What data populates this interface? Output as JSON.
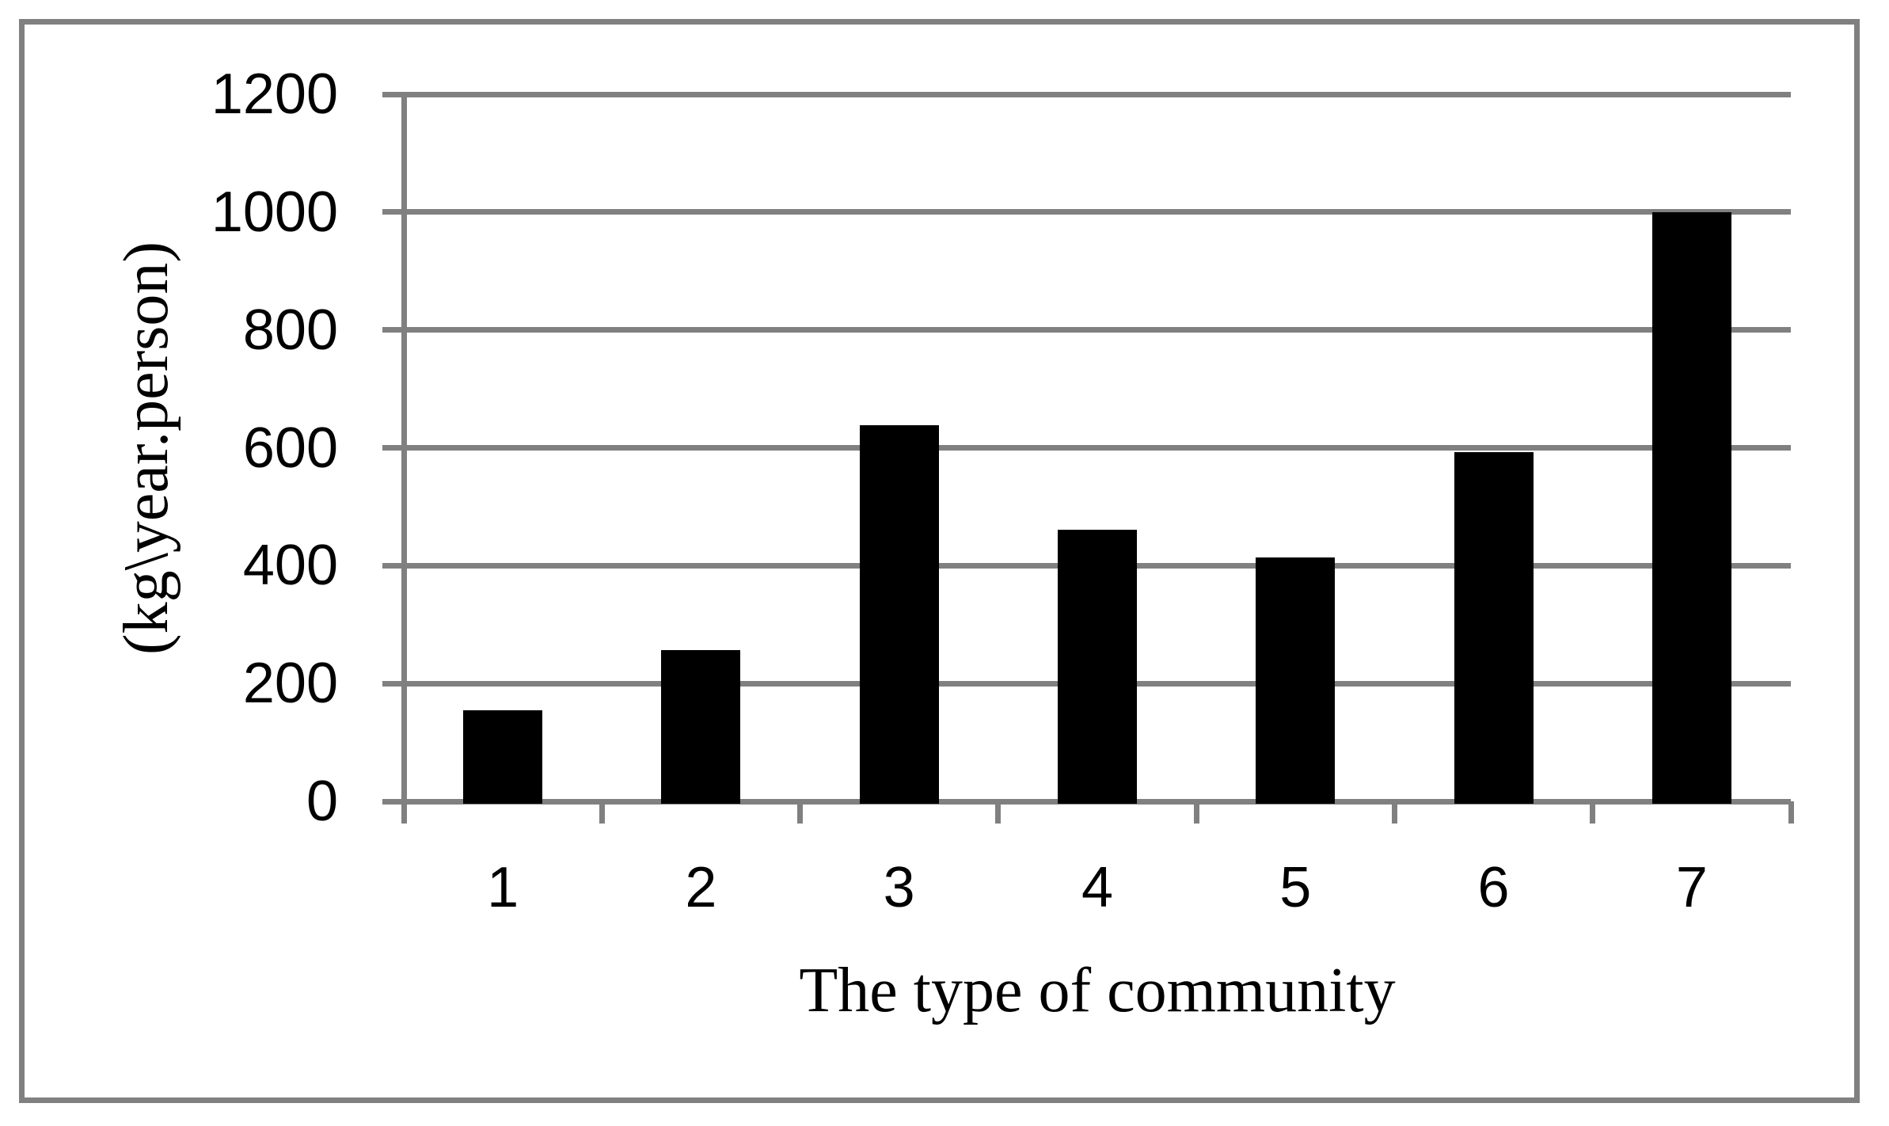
{
  "chart_data": {
    "type": "bar",
    "title": "",
    "categories": [
      "1",
      "2",
      "3",
      "4",
      "5",
      "6",
      "7"
    ],
    "values": [
      155,
      257,
      638,
      461,
      414,
      593,
      1000
    ],
    "xlabel": "The type of community",
    "ylabel": "(kg\\year.person)",
    "ylim": [
      0,
      1200
    ],
    "yticks": [
      0,
      200,
      400,
      600,
      800,
      1000,
      1200
    ],
    "grid": true,
    "legend_position": "none",
    "bar_color": "#000000",
    "axis_color": "#808080",
    "border_color": "#808080",
    "background_color": "#ffffff",
    "tick_label_color": "#000000",
    "title_color": "#000000"
  }
}
